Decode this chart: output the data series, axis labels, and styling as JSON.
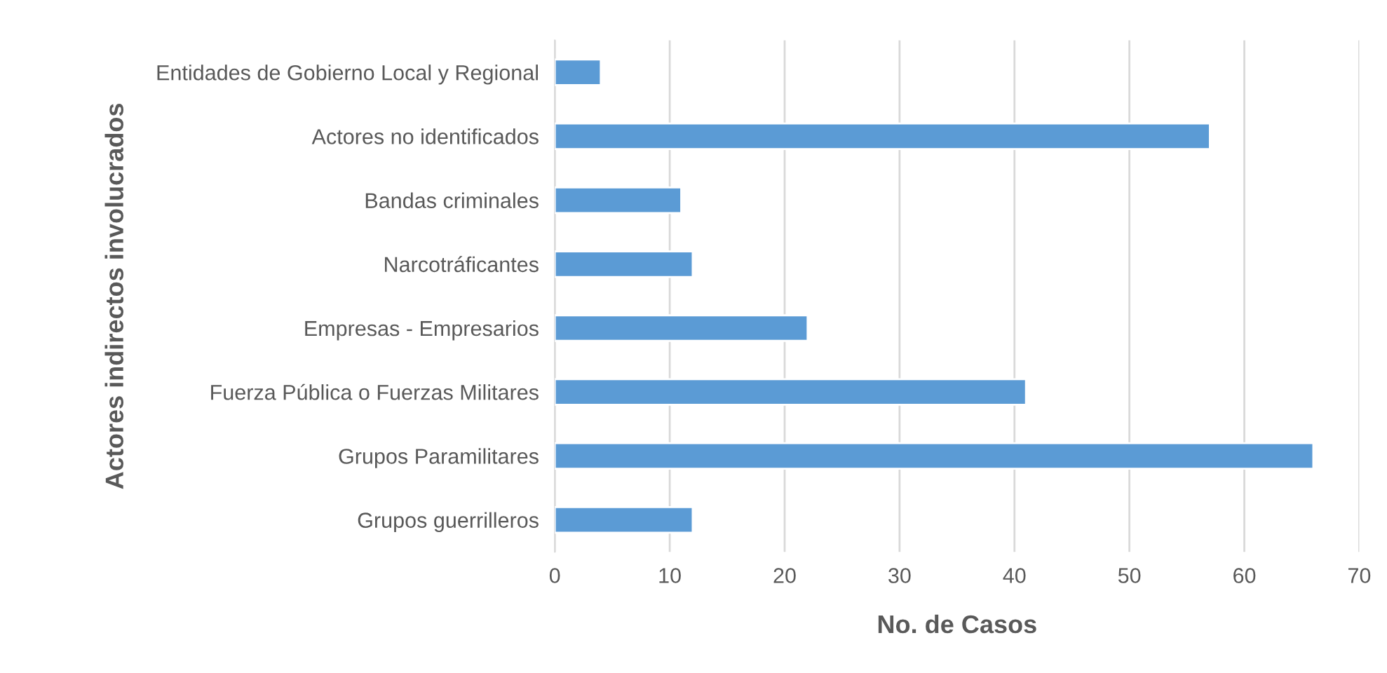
{
  "chart_data": {
    "type": "bar",
    "orientation": "horizontal",
    "xlabel": "No. de Casos",
    "ylabel": "Actores indirectos involucrados",
    "categories": [
      "Entidades de Gobierno Local y Regional",
      "Actores no identificados",
      "Bandas criminales",
      "Narcotráficantes",
      "Empresas - Empresarios",
      "Fuerza Pública o Fuerzas Militares",
      "Grupos Paramilitares",
      "Grupos guerrilleros"
    ],
    "values": [
      4,
      57,
      11,
      12,
      22,
      41,
      66,
      12
    ],
    "color": "#5b9bd5",
    "xlim": [
      0,
      70
    ],
    "xticks": [
      0,
      10,
      20,
      30,
      40,
      50,
      60,
      70
    ],
    "grid": "x",
    "legend": false
  }
}
